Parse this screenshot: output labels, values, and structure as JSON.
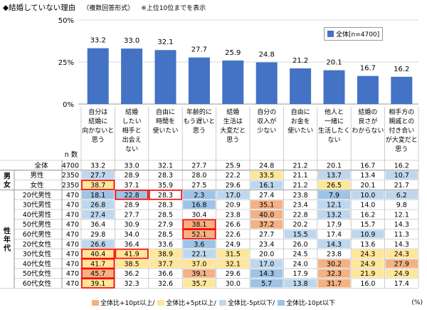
{
  "title": "◆結婚していない理由",
  "subtitle": "（複数回答形式）",
  "note": "※上位10位までを表示",
  "legend_label": "全体[n=4700]",
  "n_header": "n 数",
  "percent_unit": "(%)",
  "highlight_legend": [
    {
      "label": "全体比+10pt以上/",
      "color": "#F4B183"
    },
    {
      "label": "全体比+5pt以上/",
      "color": "#FFE699"
    },
    {
      "label": "全体比-5pt以下/",
      "color": "#BDD7EE"
    },
    {
      "label": "全体比-10pt以下",
      "color": "#9DC3E6"
    }
  ],
  "colors": {
    "bar": "#4472C4",
    "plus10": "#F4B183",
    "plus5": "#FFE699",
    "minus5": "#BDD7EE",
    "minus10": "#9DC3E6",
    "red_border": "#FF0000"
  },
  "chart_data": {
    "type": "bar",
    "ylim": [
      0,
      50
    ],
    "yticks": [
      "0%",
      "25%",
      "50%"
    ],
    "categories": [
      "自分は結婚に向かないと思う",
      "結婚したい相手と出会えない",
      "自由に時間を使いたい",
      "年齢的にもう遅いと思う",
      "結婚生活は大変だと思う",
      "自分の収入が少ない",
      "自由にお金を使いたい",
      "他人と一緒に生活したくない",
      "結婚の良さがわからない",
      "相手方の親戚との付き合いが大変だと思う"
    ],
    "category_lines": [
      [
        "自分は",
        "結婚に",
        "向かないと",
        "思う"
      ],
      [
        "結婚",
        "したい",
        "相手と",
        "出会え",
        "ない"
      ],
      [
        "自由に",
        "時間を",
        "使いたい"
      ],
      [
        "年齢的に",
        "もう遅いと",
        "思う"
      ],
      [
        "結婚",
        "生活は",
        "大変だと",
        "思う"
      ],
      [
        "自分の",
        "収入が",
        "少ない"
      ],
      [
        "自由に",
        "お金を",
        "使いたい"
      ],
      [
        "他人と",
        "一緒に",
        "生活したく",
        "ない"
      ],
      [
        "結婚の",
        "良さが",
        "わからない"
      ],
      [
        "相手方の",
        "親戚との",
        "付き合い",
        "が大変だと",
        "思う"
      ]
    ],
    "series": [
      {
        "name": "全体[n=4700]",
        "values": [
          33.2,
          33.0,
          32.1,
          27.7,
          25.9,
          24.8,
          21.2,
          20.1,
          16.7,
          16.2
        ]
      }
    ],
    "table": {
      "rows": [
        {
          "group": "",
          "label": "全体",
          "n": "4700",
          "values": [
            "33.2",
            "33.0",
            "32.1",
            "27.7",
            "25.9",
            "24.8",
            "21.2",
            "20.1",
            "16.7",
            "16.2"
          ],
          "hl": [
            "",
            "",
            "",
            "",
            "",
            "",
            "",
            "",
            "",
            ""
          ],
          "box": []
        },
        {
          "group": "男女",
          "label": "男性",
          "n": "2350",
          "values": [
            "27.7",
            "28.9",
            "28.3",
            "28.0",
            "22.2",
            "33.5",
            "21.1",
            "13.7",
            "13.4",
            "10.7"
          ],
          "hl": [
            "m5",
            "",
            "",
            "",
            "",
            "p5",
            "",
            "m5",
            "",
            "m5"
          ],
          "box": []
        },
        {
          "group": "男女",
          "label": "女性",
          "n": "2350",
          "values": [
            "38.7",
            "37.1",
            "35.9",
            "27.5",
            "29.6",
            "16.1",
            "21.2",
            "26.5",
            "20.1",
            "21.7"
          ],
          "hl": [
            "p5",
            "",
            "",
            "",
            "",
            "m5",
            "",
            "p5",
            "",
            ""
          ],
          "box": [
            0
          ]
        },
        {
          "group": "性年代",
          "label": "20代男性",
          "n": "470",
          "values": [
            "18.1",
            "22.8",
            "28.3",
            "2.3",
            "17.0",
            "27.4",
            "23.8",
            "7.9",
            "10.0",
            "6.2"
          ],
          "hl": [
            "m10",
            "m10",
            "",
            "m10",
            "m5",
            "",
            "",
            "m10",
            "m5",
            "m5"
          ],
          "box": [
            1,
            2
          ]
        },
        {
          "group": "性年代",
          "label": "30代男性",
          "n": "470",
          "values": [
            "26.8",
            "28.9",
            "28.3",
            "16.8",
            "20.9",
            "35.1",
            "23.4",
            "12.1",
            "14.0",
            "9.8"
          ],
          "hl": [
            "m5",
            "",
            "",
            "m10",
            "",
            "p10",
            "",
            "m5",
            "",
            ""
          ],
          "box": []
        },
        {
          "group": "性年代",
          "label": "40代男性",
          "n": "470",
          "values": [
            "27.4",
            "27.7",
            "28.5",
            "30.4",
            "23.8",
            "40.0",
            "22.8",
            "13.2",
            "16.2",
            "12.1"
          ],
          "hl": [
            "m5",
            "",
            "",
            "",
            "",
            "p10",
            "",
            "m5",
            "",
            ""
          ],
          "box": []
        },
        {
          "group": "性年代",
          "label": "50代男性",
          "n": "470",
          "values": [
            "36.4",
            "30.9",
            "27.9",
            "38.1",
            "26.6",
            "37.2",
            "20.2",
            "17.9",
            "15.7",
            "14.3"
          ],
          "hl": [
            "",
            "",
            "",
            "p10",
            "",
            "p10",
            "",
            "",
            "",
            ""
          ],
          "box": [
            3
          ]
        },
        {
          "group": "性年代",
          "label": "60代男性",
          "n": "470",
          "values": [
            "29.8",
            "34.0",
            "28.5",
            "52.1",
            "22.6",
            "27.7",
            "15.5",
            "17.4",
            "10.9",
            "11.3"
          ],
          "hl": [
            "",
            "",
            "",
            "p10",
            "",
            "",
            "m5",
            "",
            "m5",
            ""
          ],
          "box": [
            3
          ]
        },
        {
          "group": "性年代",
          "label": "20代女性",
          "n": "470",
          "values": [
            "26.6",
            "36.4",
            "33.6",
            "3.6",
            "24.9",
            "23.4",
            "26.0",
            "14.3",
            "13.6",
            "14.3"
          ],
          "hl": [
            "m5",
            "",
            "",
            "m10",
            "",
            "",
            "",
            "m5",
            "",
            ""
          ],
          "box": []
        },
        {
          "group": "性年代",
          "label": "30代女性",
          "n": "470",
          "values": [
            "40.4",
            "41.9",
            "38.9",
            "22.1",
            "31.5",
            "20.0",
            "24.5",
            "23.8",
            "24.3",
            "24.3"
          ],
          "hl": [
            "p5",
            "p5",
            "p5",
            "m5",
            "p5",
            "",
            "",
            "",
            "p5",
            "p5"
          ],
          "box": [
            0,
            1
          ]
        },
        {
          "group": "性年代",
          "label": "40代女性",
          "n": "470",
          "values": [
            "41.7",
            "38.5",
            "37.7",
            "37.0",
            "32.1",
            "17.0",
            "24.0",
            "30.2",
            "24.9",
            "27.9"
          ],
          "hl": [
            "p5",
            "p5",
            "p5",
            "p5",
            "p5",
            "m5",
            "",
            "p10",
            "p5",
            "p10"
          ],
          "box": [
            0
          ]
        },
        {
          "group": "性年代",
          "label": "50代女性",
          "n": "470",
          "values": [
            "45.7",
            "36.2",
            "36.6",
            "39.1",
            "29.6",
            "14.3",
            "17.9",
            "32.3",
            "21.9",
            "24.9"
          ],
          "hl": [
            "p10",
            "",
            "",
            "p10",
            "",
            "m10",
            "",
            "p10",
            "p5",
            "p5"
          ],
          "box": [
            0
          ]
        },
        {
          "group": "性年代",
          "label": "60代女性",
          "n": "470",
          "values": [
            "39.1",
            "32.3",
            "32.6",
            "35.7",
            "30.0",
            "5.7",
            "13.8",
            "31.7",
            "16.0",
            "17.4"
          ],
          "hl": [
            "p5",
            "",
            "",
            "p5",
            "",
            "m10",
            "m5",
            "p10",
            "",
            ""
          ],
          "box": [
            0
          ]
        }
      ]
    }
  }
}
